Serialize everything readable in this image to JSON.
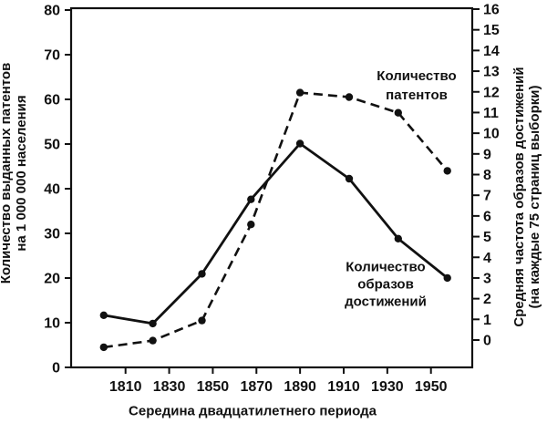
{
  "chart_data": {
    "type": "line",
    "title": "",
    "xlabel": "Середина двадцатилетнего периода",
    "x": [
      1800,
      1822.5,
      1845,
      1867.5,
      1890,
      1912.5,
      1935,
      1957.5
    ],
    "x_ticks": [
      1810,
      1830,
      1850,
      1870,
      1890,
      1910,
      1930,
      1950
    ],
    "axes": {
      "left": {
        "title_lines": [
          "Количество выданных патентов",
          "на 1 000 000 населения"
        ],
        "ticks": [
          0,
          10,
          20,
          30,
          40,
          50,
          60,
          70,
          80
        ],
        "range": [
          0,
          80
        ]
      },
      "right": {
        "title_lines": [
          "Средняя частота образов достижений",
          "(на каждые 75 страниц выборки)"
        ],
        "ticks": [
          0,
          1,
          2,
          3,
          4,
          5,
          6,
          7,
          8,
          9,
          10,
          11,
          12,
          13,
          14,
          15,
          16
        ],
        "range_shown": [
          0,
          16
        ]
      }
    },
    "series": [
      {
        "name": "Количество патентов",
        "axis": "left",
        "line_style": "dashed",
        "marker": "circle",
        "values": [
          4.5,
          6,
          10.5,
          32,
          61.5,
          60.5,
          57,
          44
        ]
      },
      {
        "name": "Количество образов достижений",
        "axis": "right",
        "line_style": "solid",
        "marker": "circle",
        "values": [
          1.2,
          0.8,
          3.2,
          6.8,
          9.5,
          7.8,
          4.9,
          3.0
        ]
      }
    ],
    "series_labels": {
      "patents": [
        "Количество",
        "патентов"
      ],
      "imagery": [
        "Количество",
        "образов",
        "достижений"
      ]
    },
    "legend": "none (in-plot text annotations)",
    "grid": false,
    "colors": {
      "ink": "#111111",
      "background": "#ffffff"
    }
  }
}
